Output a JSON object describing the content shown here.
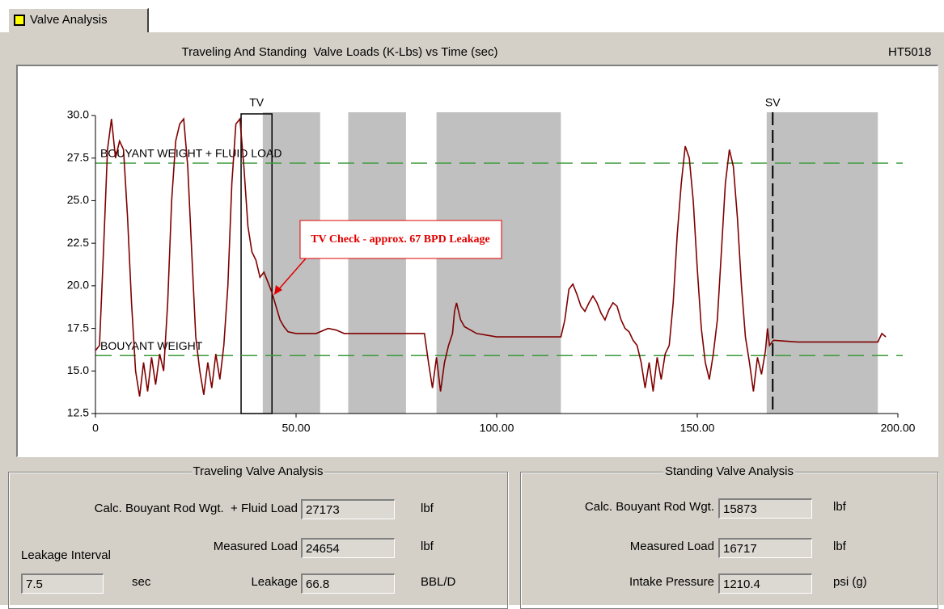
{
  "tab": {
    "label": "Valve Analysis"
  },
  "chart_data": {
    "type": "line",
    "title": "Traveling And Standing  Valve Loads (K-Lbs) vs Time (sec)",
    "well_id": "HT5018",
    "xlim": [
      0,
      200
    ],
    "xticks": [
      0,
      {
        "value": 50,
        "label": "50.00"
      },
      {
        "value": 100,
        "label": "100.00"
      },
      {
        "value": 150,
        "label": "150.00"
      },
      {
        "value": 200,
        "label": "200.00"
      }
    ],
    "ylim": [
      12.5,
      30
    ],
    "yticks": [
      12.5,
      {
        "value": 15,
        "label": "15.0"
      },
      17.5,
      {
        "value": 20,
        "label": "20.0"
      },
      22.5,
      {
        "value": 25,
        "label": "25.0"
      },
      27.5,
      {
        "value": 30,
        "label": "30.0"
      }
    ],
    "x": [
      0,
      1,
      2,
      3,
      4,
      5,
      6,
      7,
      8,
      9,
      10,
      11,
      12,
      13,
      14,
      15,
      16,
      17,
      18,
      19,
      20,
      21,
      22,
      23,
      24,
      25,
      26,
      27,
      28,
      29,
      30,
      31,
      32,
      33,
      34,
      35,
      36,
      37,
      38,
      39,
      40,
      41,
      42,
      43,
      44,
      45,
      46,
      47,
      48,
      50,
      55,
      58,
      60,
      62,
      70,
      82,
      83,
      84,
      85,
      86,
      87,
      88,
      89,
      89.5,
      90,
      91,
      92,
      95,
      100,
      116,
      117,
      118,
      119,
      120,
      121,
      122,
      123,
      124,
      125,
      126,
      127,
      128,
      129,
      130,
      131,
      132,
      133,
      134,
      135,
      136,
      137,
      138,
      139,
      140,
      141,
      142,
      143,
      144,
      145,
      146,
      147,
      148,
      149,
      150,
      151,
      152,
      153,
      154,
      155,
      156,
      157,
      158,
      159,
      160,
      161,
      162,
      163,
      164,
      165,
      166,
      167,
      167.5,
      168,
      169,
      175,
      195,
      196,
      197
    ],
    "series": [
      {
        "color": "#800000",
        "values": [
          16.2,
          16.5,
          22,
          28,
          29.8,
          27.5,
          28.5,
          28,
          24,
          19,
          15,
          13.5,
          15.5,
          13.8,
          15.8,
          14.2,
          16,
          15,
          19,
          25,
          28.5,
          29.5,
          29.8,
          27,
          22,
          17,
          15,
          13.6,
          15.5,
          14,
          16,
          14.5,
          16.5,
          20,
          26,
          29.5,
          29.8,
          27,
          23.5,
          22,
          21.5,
          20.5,
          20.8,
          20.2,
          19.6,
          18.8,
          18,
          17.6,
          17.3,
          17.2,
          17.2,
          17.5,
          17.4,
          17.2,
          17.2,
          17.2,
          15.5,
          14,
          15.8,
          13.8,
          15.5,
          16.5,
          17.2,
          18.5,
          19,
          18,
          17.6,
          17.2,
          17,
          17,
          18,
          19.8,
          20.1,
          19.5,
          18.8,
          18.5,
          19,
          19.4,
          19,
          18.4,
          18,
          18.6,
          19,
          18.8,
          18,
          17.5,
          17.3,
          16.8,
          16.5,
          15.5,
          14,
          15.5,
          13.8,
          15.8,
          14.5,
          16,
          16.5,
          19,
          23,
          26,
          28.2,
          27.5,
          25,
          21,
          17.5,
          15.5,
          14.5,
          16,
          18,
          22,
          26,
          28,
          27,
          24,
          20,
          17,
          15.5,
          13.8,
          15.8,
          14.8,
          16.2,
          17.5,
          16.5,
          16.8,
          16.7,
          16.7,
          17.2,
          17
        ]
      }
    ],
    "reference_lines": [
      {
        "label": "BOUYANT WEIGHT + FLUID LOAD",
        "value": 27.2,
        "color": "#3a9a3a"
      },
      {
        "label": "BOUYANT WEIGHT",
        "value": 15.9,
        "color": "#3a9a3a"
      }
    ],
    "shaded_spans": [
      [
        41.7,
        56
      ],
      [
        63,
        77.4
      ],
      [
        85,
        116
      ],
      [
        167.3,
        195
      ]
    ],
    "tv_window": {
      "label": "TV",
      "range": [
        36.3,
        44
      ]
    },
    "sv_marker": {
      "label": "SV",
      "value": 168.8
    },
    "annotation": {
      "text": "TV Check - approx. 67 BPD Leakage",
      "color": "#e00000"
    }
  },
  "traveling": {
    "title": "Traveling Valve Analysis",
    "fields": [
      {
        "label": "Calc. Bouyant Rod Wgt.  + Fluid Load",
        "value": "27173",
        "unit": "lbf"
      },
      {
        "label": "Measured Load",
        "value": "24654",
        "unit": "lbf"
      },
      {
        "label": "Leakage",
        "value": "66.8",
        "unit": "BBL/D"
      }
    ],
    "interval": {
      "label": "Leakage Interval",
      "value": "7.5",
      "unit": "sec"
    }
  },
  "standing": {
    "title": "Standing Valve Analysis",
    "fields": [
      {
        "label": "Calc. Bouyant Rod Wgt.",
        "value": "15873",
        "unit": "lbf"
      },
      {
        "label": "Measured Load",
        "value": "16717",
        "unit": "lbf"
      },
      {
        "label": "Intake Pressure",
        "value": "1210.4",
        "unit": "psi (g)"
      }
    ]
  }
}
